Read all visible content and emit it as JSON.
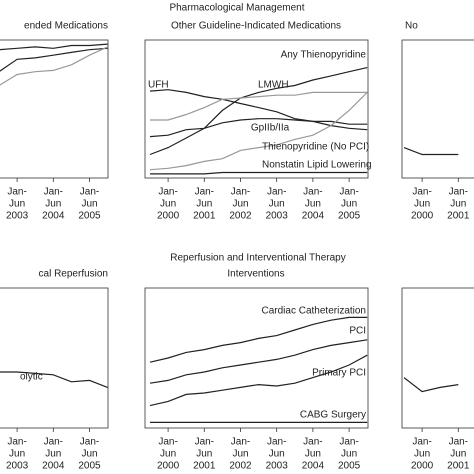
{
  "section_titles": [
    "Pharmacological Management",
    "Reperfusion and Interventional Therapy"
  ],
  "chart_data": [
    {
      "type": "line",
      "title": "ended Medications",
      "categories": [
        null,
        [
          "Jan-",
          "Jun",
          "2003"
        ],
        null,
        [
          "Jan-",
          "Jun",
          "2004"
        ],
        null,
        [
          "Jan-",
          "Jun",
          "2005"
        ],
        null
      ],
      "ylim": [
        0,
        100
      ],
      "series": [
        {
          "color": "#222222",
          "values": [
            93,
            94,
            95,
            94,
            96,
            96,
            97
          ]
        },
        {
          "color": "#222222",
          "values": [
            77,
            86,
            87,
            89,
            91,
            93,
            94
          ]
        },
        {
          "color": "#999999",
          "values": [
            67,
            75,
            77,
            78,
            82,
            89,
            95
          ]
        }
      ]
    },
    {
      "type": "line",
      "title": "Other Guideline-Indicated Medications",
      "categories": [
        null,
        [
          "Jan-",
          "Jun",
          "2000"
        ],
        null,
        [
          "Jan-",
          "Jun",
          "2001"
        ],
        null,
        [
          "Jan-",
          "Jun",
          "2002"
        ],
        null,
        [
          "Jan-",
          "Jun",
          "2003"
        ],
        null,
        [
          "Jan-",
          "Jun",
          "2004"
        ],
        null,
        [
          "Jan-",
          "Jun",
          "2005"
        ],
        null
      ],
      "ylim": [
        0,
        100
      ],
      "series": [
        {
          "name": "Any Thienopyridine",
          "color": "#222222",
          "values": [
            17,
            22,
            29,
            36,
            49,
            58,
            62,
            65,
            67,
            71,
            74,
            77,
            80
          ]
        },
        {
          "name": "UFH",
          "color": "#222222",
          "values": [
            63,
            64,
            62,
            59,
            57,
            54,
            51,
            48,
            43,
            41,
            38,
            36,
            35
          ]
        },
        {
          "name": "LMWH",
          "color": "#999999",
          "values": [
            42,
            42,
            46,
            51,
            57,
            58,
            59,
            60,
            60,
            62,
            62,
            62,
            62
          ]
        },
        {
          "name": "GpIIb/IIa",
          "color": "#222222",
          "values": [
            30,
            31,
            35,
            36,
            40,
            42,
            43,
            43,
            42,
            41,
            41,
            39,
            39
          ]
        },
        {
          "name": "Thienopyridine (No PCI)",
          "color": "#999999",
          "values": [
            6,
            7,
            9,
            12,
            14,
            20,
            22,
            24,
            28,
            31,
            38,
            49,
            62
          ]
        },
        {
          "name": "Nonstatin Lipid Lowering",
          "color": "#222222",
          "values": [
            3,
            3,
            3,
            3,
            4,
            4,
            4,
            4,
            4,
            4,
            4,
            4,
            4
          ]
        }
      ]
    },
    {
      "type": "line",
      "title": "No",
      "categories": [
        null,
        [
          "Jan-",
          "Jun",
          "2000"
        ],
        null,
        [
          "Jan-",
          "Jun",
          "2001"
        ]
      ],
      "ylim": [
        0,
        100
      ],
      "series": [
        {
          "color": "#222222",
          "values": [
            22,
            17,
            17,
            17
          ]
        }
      ]
    },
    {
      "type": "line",
      "title": "cal Reperfusion",
      "categories": [
        null,
        [
          "Jan-",
          "Jun",
          "2003"
        ],
        null,
        [
          "Jan-",
          "Jun",
          "2004"
        ],
        null,
        [
          "Jan-",
          "Jun",
          "2005"
        ],
        null
      ],
      "ylim": [
        0,
        100
      ],
      "series": [
        {
          "name": "olytic",
          "color": "#222222",
          "values": [
            40,
            40,
            39,
            38,
            33,
            34,
            29
          ]
        }
      ]
    },
    {
      "type": "line",
      "title": "Interventions",
      "categories": [
        null,
        [
          "Jan-",
          "Jun",
          "2000"
        ],
        null,
        [
          "Jan-",
          "Jun",
          "2001"
        ],
        null,
        [
          "Jan-",
          "Jun",
          "2002"
        ],
        null,
        [
          "Jan-",
          "Jun",
          "2003"
        ],
        null,
        [
          "Jan-",
          "Jun",
          "2004"
        ],
        null,
        [
          "Jan-",
          "Jun",
          "2005"
        ],
        null
      ],
      "ylim": [
        0,
        100
      ],
      "series": [
        {
          "name": "Cardiac Catheterization",
          "color": "#222222",
          "values": [
            47,
            50,
            54,
            56,
            59,
            61,
            64,
            66,
            70,
            74,
            77,
            79,
            79
          ]
        },
        {
          "name": "PCI",
          "color": "#222222",
          "values": [
            32,
            34,
            38,
            40,
            43,
            45,
            47,
            49,
            52,
            56,
            59,
            61,
            63
          ]
        },
        {
          "name": "Primary PCI",
          "color": "#222222",
          "values": [
            16,
            19,
            24,
            25,
            27,
            29,
            31,
            30,
            32,
            36,
            40,
            45,
            52
          ]
        },
        {
          "name": "CABG Surgery",
          "color": "#222222",
          "values": [
            4,
            4,
            4,
            4,
            4,
            4,
            4,
            4,
            4,
            4,
            4,
            4,
            4
          ]
        }
      ]
    },
    {
      "type": "line",
      "title": "",
      "categories": [
        null,
        [
          "Jan-",
          "Jun",
          "2000"
        ],
        null,
        [
          "Jan-",
          "Jun",
          "2001"
        ]
      ],
      "ylim": [
        0,
        100
      ],
      "series": [
        {
          "color": "#222222",
          "values": [
            36,
            26,
            29,
            31
          ]
        }
      ]
    }
  ]
}
